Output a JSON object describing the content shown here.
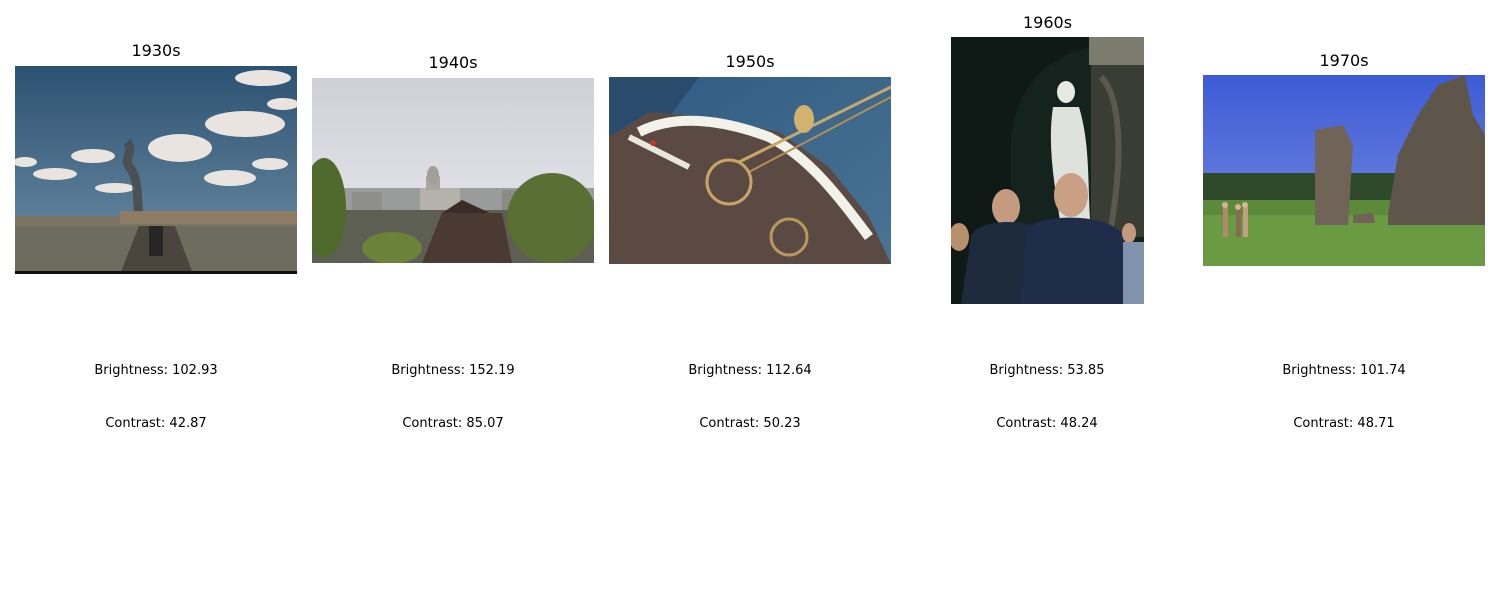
{
  "panels": [
    {
      "title": "1930s",
      "brightness_label": "Brightness: 102.93",
      "contrast_label": "Contrast: 42.87",
      "brightness": 102.93,
      "contrast": 42.87
    },
    {
      "title": "1940s",
      "brightness_label": "Brightness: 152.19",
      "contrast_label": "Contrast: 85.07",
      "brightness": 152.19,
      "contrast": 85.07
    },
    {
      "title": "1950s",
      "brightness_label": "Brightness: 112.64",
      "contrast_label": "Contrast: 50.23",
      "brightness": 112.64,
      "contrast": 50.23
    },
    {
      "title": "1960s",
      "brightness_label": "Brightness: 53.85",
      "contrast_label": "Contrast: 48.24",
      "brightness": 53.85,
      "contrast": 48.24
    },
    {
      "title": "1970s",
      "brightness_label": "Brightness: 101.74",
      "contrast_label": "Contrast: 48.71",
      "brightness": 101.74,
      "contrast": 48.71
    }
  ]
}
